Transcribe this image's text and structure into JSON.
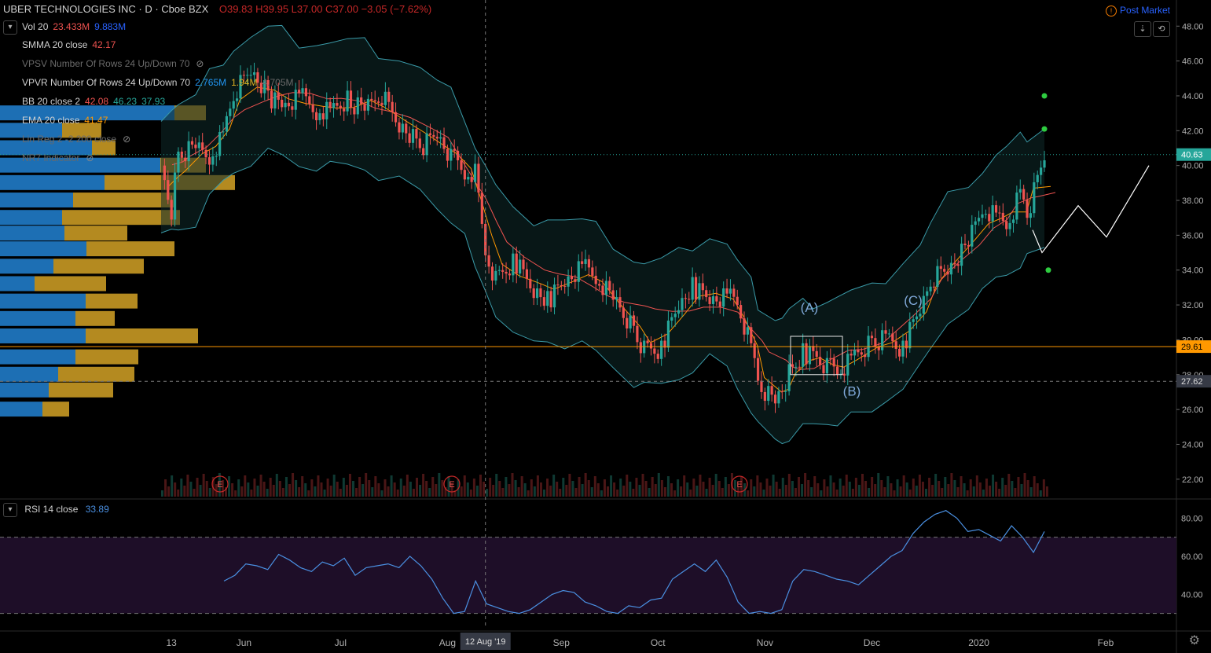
{
  "header": {
    "symbol": "UBER TECHNOLOGIES INC · D · Cboe BZX",
    "ohlc": "O39.83 H39.95 L37.00 C37.00 −3.05 (−7.62%)",
    "post_market": "Post Market"
  },
  "indicators": [
    {
      "name": "Vol 20",
      "values": [
        "23.433M",
        "9.883M"
      ],
      "colors": [
        "#ef5350",
        "#2962ff"
      ],
      "hidden": false
    },
    {
      "name": "SMMA 20 close",
      "values": [
        "42.17"
      ],
      "colors": [
        "#ef5350"
      ],
      "hidden": false
    },
    {
      "name": "VPSV Number Of Rows 24 Up/Down 70",
      "values": [],
      "colors": [],
      "hidden": true
    },
    {
      "name": "VPVR Number Of Rows 24 Up/Down 70",
      "values": [
        "2.765M",
        "1.94M",
        "4.705M"
      ],
      "colors": [
        "#2196f3",
        "#e0b020",
        "#6a6a6a"
      ],
      "hidden": false
    },
    {
      "name": "BB 20 close 2",
      "values": [
        "42.08",
        "46.23",
        "37.93"
      ],
      "colors": [
        "#ef5350",
        "#26a69a",
        "#26a69a"
      ],
      "hidden": false
    },
    {
      "name": "EMA 20 close",
      "values": [
        "41.47"
      ],
      "colors": [
        "#ff9800"
      ],
      "hidden": false
    },
    {
      "name": "Lin Reg 2 -2 200 close",
      "values": [],
      "colors": [],
      "hidden": true
    },
    {
      "name": "NR7 Indicator",
      "values": [],
      "colors": [],
      "hidden": true
    }
  ],
  "rsi": {
    "name": "RSI 14 close",
    "value": "33.89",
    "ticks": [
      "80.00",
      "60.00",
      "40.00"
    ],
    "upper": 70,
    "lower": 30
  },
  "price_axis": {
    "ticks": [
      "48.00",
      "46.00",
      "44.00",
      "42.00",
      "40.00",
      "38.00",
      "36.00",
      "34.00",
      "32.00",
      "30.00",
      "28.00",
      "26.00",
      "24.00",
      "22.00"
    ],
    "last_price": "40.63",
    "hline_label": "29.61",
    "crosshair_label": "27.62"
  },
  "time_axis": {
    "labels": [
      "13",
      "Jun",
      "Jul",
      "Aug",
      "Sep",
      "Oct",
      "Nov",
      "Dec",
      "2020",
      "Feb"
    ],
    "crosshair_label": "12 Aug '19"
  },
  "annotations": {
    "wave_a": "(A)",
    "wave_b": "(B)",
    "wave_c": "(C)",
    "earnings": "E"
  },
  "colors": {
    "up": "#26a69a",
    "down": "#ef5350",
    "hline": "#ff9800",
    "bb": "#3a9aa8",
    "ema": "#ff9800",
    "smma": "#ef5350",
    "rsi": "#4a90e2",
    "rsi_band": "#1e0e28",
    "vp_up": "#1d6fb4",
    "vp_down": "#b48a20"
  },
  "chart_data": {
    "type": "candlestick",
    "ylim": [
      21,
      49.5
    ],
    "close_path": [
      [
        "2019-05-10",
        40.0
      ],
      [
        "2019-05-13",
        37.5
      ],
      [
        "2019-05-15",
        40.5
      ],
      [
        "2019-05-20",
        41.0
      ],
      [
        "2019-05-24",
        40.5
      ],
      [
        "2019-05-28",
        41.8
      ],
      [
        "2019-05-31",
        44.0
      ],
      [
        "2019-06-05",
        45.5
      ],
      [
        "2019-06-10",
        44.0
      ],
      [
        "2019-06-14",
        43.5
      ],
      [
        "2019-06-19",
        44.0
      ],
      [
        "2019-06-24",
        43.2
      ],
      [
        "2019-06-28",
        43.0
      ],
      [
        "2019-07-03",
        43.7
      ],
      [
        "2019-07-08",
        43.3
      ],
      [
        "2019-07-12",
        44.2
      ],
      [
        "2019-07-18",
        42.5
      ],
      [
        "2019-07-24",
        41.0
      ],
      [
        "2019-07-29",
        42.0
      ],
      [
        "2019-08-02",
        40.5
      ],
      [
        "2019-08-06",
        39.5
      ],
      [
        "2019-08-09",
        39.5
      ],
      [
        "2019-08-12",
        35.0
      ],
      [
        "2019-08-15",
        33.5
      ],
      [
        "2019-08-20",
        34.5
      ],
      [
        "2019-08-26",
        33.0
      ],
      [
        "2019-08-30",
        32.2
      ],
      [
        "2019-09-04",
        33.5
      ],
      [
        "2019-09-09",
        34.2
      ],
      [
        "2019-09-13",
        33.5
      ],
      [
        "2019-09-18",
        32.3
      ],
      [
        "2019-09-24",
        30.5
      ],
      [
        "2019-09-27",
        29.5
      ],
      [
        "2019-10-02",
        29.5
      ],
      [
        "2019-10-07",
        32.0
      ],
      [
        "2019-10-11",
        33.0
      ],
      [
        "2019-10-16",
        32.5
      ],
      [
        "2019-10-21",
        32.5
      ],
      [
        "2019-10-24",
        32.0
      ],
      [
        "2019-10-28",
        29.5
      ],
      [
        "2019-10-30",
        27.5
      ],
      [
        "2019-11-04",
        26.5
      ],
      [
        "2019-11-06",
        27.0
      ],
      [
        "2019-11-08",
        28.0
      ],
      [
        "2019-11-12",
        29.2
      ],
      [
        "2019-11-15",
        29.2
      ],
      [
        "2019-11-19",
        28.5
      ],
      [
        "2019-11-22",
        28.0
      ],
      [
        "2019-11-26",
        28.8
      ],
      [
        "2019-12-02",
        29.8
      ],
      [
        "2019-12-06",
        30.2
      ],
      [
        "2019-12-11",
        29.5
      ],
      [
        "2019-12-16",
        31.8
      ],
      [
        "2019-12-19",
        33.5
      ],
      [
        "2019-12-24",
        34.2
      ],
      [
        "2019-12-30",
        35.5
      ],
      [
        "2020-01-03",
        37.5
      ],
      [
        "2020-01-07",
        37.0
      ],
      [
        "2020-01-10",
        36.5
      ],
      [
        "2020-01-14",
        38.5
      ],
      [
        "2020-01-16",
        37.0
      ],
      [
        "2020-01-21",
        40.6
      ]
    ],
    "last_price": 40.63,
    "hline": 29.61,
    "rsi_range": [
      22,
      88
    ]
  }
}
